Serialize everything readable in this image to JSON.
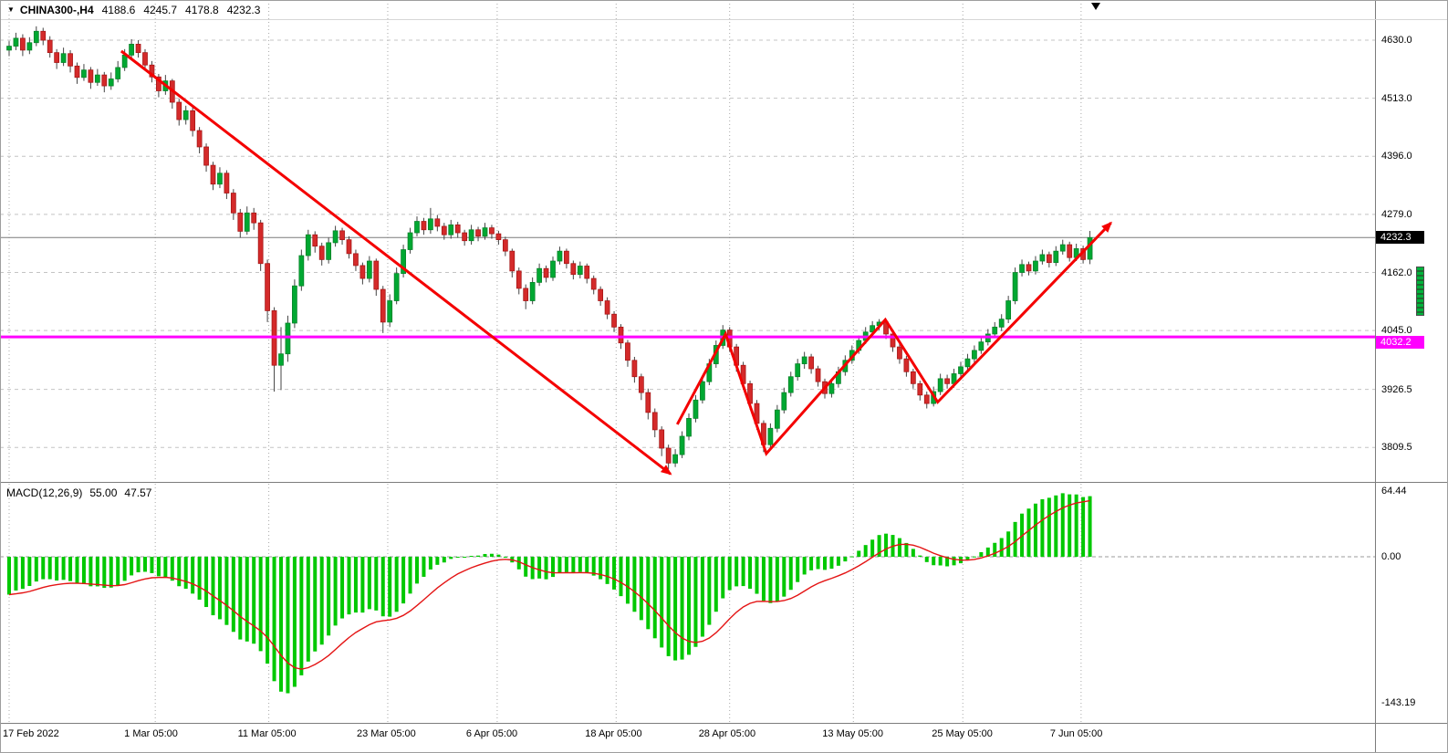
{
  "header": {
    "dropdown_icon": "▼",
    "symbol": "CHINA300-,H4",
    "open": "4188.6",
    "high": "4245.7",
    "low": "4178.8",
    "close": "4232.3"
  },
  "macd_panel": {
    "label": "MACD(12,26,9)",
    "main_value": "55.00",
    "signal_value": "47.57"
  },
  "colors": {
    "background": "#ffffff",
    "grid_h": "#c4c4c4",
    "grid_v": "#a8a8a8",
    "candle_up": "#00a832",
    "candle_up_border": "#067f26",
    "candle_down": "#d42a2a",
    "candle_down_border": "#a31414",
    "wick": "#444444",
    "current_price_line": "#7a7a7a",
    "hline": "#ff00ff",
    "arrow": "#f40000",
    "histogram": "#00c800",
    "signal_line": "#e41414",
    "zero_line": "#9b9b9b",
    "tag_current_bg": "#000000",
    "tag_hline_bg": "#ff00ff"
  },
  "chart_data": [
    {
      "type": "candlestick",
      "symbol": "CHINA300-,H4",
      "timeframe": "H4",
      "last_candle_ohlc": {
        "open": 4188.6,
        "high": 4245.7,
        "low": 4178.8,
        "close": 4232.3
      },
      "price_ticks": [
        "4630.0",
        "4513.0",
        "4396.0",
        "4279.0",
        "4162.0",
        "4045.0",
        "3926.5",
        "3809.5"
      ],
      "scale": {
        "top_price": 4711,
        "bottom_price": 3740
      },
      "time_ticks": [
        {
          "label": "17 Feb 2022",
          "index": 0
        },
        {
          "label": "1 Mar 05:00",
          "index": 21.5
        },
        {
          "label": "11 Mar 05:00",
          "index": 38.2
        },
        {
          "label": "23 Mar 05:00",
          "index": 55.7
        },
        {
          "label": "6 Apr 05:00",
          "index": 71.8
        },
        {
          "label": "18 Apr 05:00",
          "index": 89.3
        },
        {
          "label": "28 Apr 05:00",
          "index": 106
        },
        {
          "label": "13 May 05:00",
          "index": 124.2
        },
        {
          "label": "25 May 05:00",
          "index": 140.3
        },
        {
          "label": "7 Jun 05:00",
          "index": 157.7
        }
      ],
      "current_price": {
        "value": 4232.3,
        "label": "4232.3"
      },
      "horizontal_line": {
        "value": 4032.2,
        "label": "4032.2"
      },
      "trend_arrows": [
        {
          "name": "downtrend-arrow",
          "points": [
            [
              16.5,
              4608
            ],
            [
              97.3,
              3756
            ]
          ]
        },
        {
          "name": "zigzag-recovery-arrow",
          "points": [
            [
              98.3,
              3856
            ],
            [
              105.4,
              4038
            ],
            [
              111.4,
              3797
            ],
            [
              128.9,
              4067
            ],
            [
              136.6,
              3901
            ],
            [
              162.1,
              4262
            ]
          ]
        }
      ],
      "candles": [
        [
          4610,
          4628,
          4598,
          4618
        ],
        [
          4618,
          4645,
          4610,
          4634
        ],
        [
          4634,
          4642,
          4598,
          4610
        ],
        [
          4610,
          4636,
          4602,
          4625
        ],
        [
          4625,
          4658,
          4618,
          4648
        ],
        [
          4648,
          4655,
          4620,
          4630
        ],
        [
          4630,
          4638,
          4595,
          4605
        ],
        [
          4605,
          4612,
          4572,
          4585
        ],
        [
          4585,
          4615,
          4578,
          4603
        ],
        [
          4603,
          4610,
          4565,
          4578
        ],
        [
          4578,
          4585,
          4542,
          4555
        ],
        [
          4555,
          4582,
          4548,
          4570
        ],
        [
          4570,
          4576,
          4532,
          4545
        ],
        [
          4545,
          4572,
          4538,
          4560
        ],
        [
          4560,
          4566,
          4525,
          4538
        ],
        [
          4538,
          4565,
          4530,
          4552
        ],
        [
          4552,
          4588,
          4545,
          4575
        ],
        [
          4575,
          4612,
          4568,
          4600
        ],
        [
          4600,
          4632,
          4592,
          4622
        ],
        [
          4622,
          4630,
          4595,
          4605
        ],
        [
          4605,
          4612,
          4570,
          4580
        ],
        [
          4580,
          4588,
          4545,
          4556
        ],
        [
          4556,
          4562,
          4515,
          4528
        ],
        [
          4528,
          4560,
          4520,
          4548
        ],
        [
          4548,
          4552,
          4492,
          4505
        ],
        [
          4505,
          4512,
          4458,
          4470
        ],
        [
          4470,
          4498,
          4460,
          4488
        ],
        [
          4488,
          4495,
          4436,
          4448
        ],
        [
          4448,
          4455,
          4402,
          4415
        ],
        [
          4415,
          4422,
          4365,
          4378
        ],
        [
          4378,
          4385,
          4328,
          4340
        ],
        [
          4340,
          4374,
          4332,
          4362
        ],
        [
          4362,
          4368,
          4310,
          4322
        ],
        [
          4322,
          4330,
          4268,
          4282
        ],
        [
          4282,
          4290,
          4232,
          4245
        ],
        [
          4245,
          4295,
          4238,
          4282
        ],
        [
          4282,
          4292,
          4248,
          4262
        ],
        [
          4262,
          4268,
          4165,
          4180
        ],
        [
          4180,
          4188,
          4062,
          4085
        ],
        [
          4085,
          4092,
          3922,
          3975
        ],
        [
          3975,
          4052,
          3925,
          3998
        ],
        [
          3998,
          4075,
          3982,
          4060
        ],
        [
          4060,
          4148,
          4050,
          4135
        ],
        [
          4135,
          4208,
          4125,
          4196
        ],
        [
          4196,
          4248,
          4186,
          4238
        ],
        [
          4238,
          4245,
          4202,
          4215
        ],
        [
          4215,
          4222,
          4176,
          4188
        ],
        [
          4188,
          4232,
          4180,
          4222
        ],
        [
          4222,
          4256,
          4214,
          4246
        ],
        [
          4246,
          4252,
          4218,
          4228
        ],
        [
          4228,
          4235,
          4190,
          4200
        ],
        [
          4200,
          4208,
          4165,
          4176
        ],
        [
          4176,
          4182,
          4138,
          4150
        ],
        [
          4150,
          4195,
          4142,
          4185
        ],
        [
          4185,
          4190,
          4115,
          4128
        ],
        [
          4128,
          4135,
          4040,
          4062
        ],
        [
          4062,
          4118,
          4052,
          4105
        ],
        [
          4105,
          4172,
          4098,
          4160
        ],
        [
          4160,
          4218,
          4152,
          4208
        ],
        [
          4208,
          4252,
          4200,
          4242
        ],
        [
          4242,
          4275,
          4235,
          4265
        ],
        [
          4265,
          4272,
          4238,
          4248
        ],
        [
          4248,
          4292,
          4240,
          4270
        ],
        [
          4270,
          4278,
          4245,
          4255
        ],
        [
          4255,
          4262,
          4228,
          4238
        ],
        [
          4238,
          4268,
          4230,
          4258
        ],
        [
          4258,
          4264,
          4232,
          4242
        ],
        [
          4242,
          4248,
          4216,
          4226
        ],
        [
          4226,
          4258,
          4218,
          4248
        ],
        [
          4248,
          4254,
          4225,
          4235
        ],
        [
          4235,
          4262,
          4228,
          4252
        ],
        [
          4252,
          4258,
          4230,
          4240
        ],
        [
          4240,
          4246,
          4218,
          4228
        ],
        [
          4228,
          4234,
          4195,
          4205
        ],
        [
          4205,
          4210,
          4152,
          4165
        ],
        [
          4165,
          4172,
          4118,
          4130
        ],
        [
          4130,
          4138,
          4088,
          4105
        ],
        [
          4105,
          4152,
          4098,
          4142
        ],
        [
          4142,
          4180,
          4135,
          4170
        ],
        [
          4170,
          4176,
          4142,
          4152
        ],
        [
          4152,
          4194,
          4145,
          4185
        ],
        [
          4185,
          4214,
          4178,
          4205
        ],
        [
          4205,
          4210,
          4170,
          4180
        ],
        [
          4180,
          4186,
          4148,
          4158
        ],
        [
          4158,
          4184,
          4150,
          4175
        ],
        [
          4175,
          4180,
          4140,
          4150
        ],
        [
          4150,
          4156,
          4118,
          4128
        ],
        [
          4128,
          4134,
          4095,
          4105
        ],
        [
          4105,
          4112,
          4068,
          4078
        ],
        [
          4078,
          4084,
          4042,
          4052
        ],
        [
          4052,
          4058,
          4008,
          4020
        ],
        [
          4020,
          4026,
          3972,
          3985
        ],
        [
          3985,
          3992,
          3940,
          3952
        ],
        [
          3952,
          3958,
          3905,
          3920
        ],
        [
          3920,
          3928,
          3866,
          3880
        ],
        [
          3880,
          3888,
          3830,
          3845
        ],
        [
          3845,
          3852,
          3792,
          3808
        ],
        [
          3808,
          3815,
          3766,
          3778
        ],
        [
          3778,
          3806,
          3770,
          3795
        ],
        [
          3795,
          3842,
          3788,
          3832
        ],
        [
          3832,
          3878,
          3824,
          3868
        ],
        [
          3868,
          3915,
          3860,
          3905
        ],
        [
          3905,
          3952,
          3898,
          3942
        ],
        [
          3942,
          3988,
          3935,
          3978
        ],
        [
          3978,
          4025,
          3970,
          4015
        ],
        [
          4015,
          4056,
          4008,
          4046
        ],
        [
          4046,
          4052,
          4002,
          4012
        ],
        [
          4012,
          4018,
          3962,
          3975
        ],
        [
          3975,
          3982,
          3926,
          3938
        ],
        [
          3938,
          3944,
          3886,
          3898
        ],
        [
          3898,
          3905,
          3845,
          3858
        ],
        [
          3858,
          3864,
          3800,
          3815
        ],
        [
          3815,
          3858,
          3808,
          3848
        ],
        [
          3848,
          3895,
          3840,
          3885
        ],
        [
          3885,
          3930,
          3878,
          3920
        ],
        [
          3920,
          3962,
          3912,
          3952
        ],
        [
          3952,
          3988,
          3944,
          3978
        ],
        [
          3978,
          4002,
          3968,
          3992
        ],
        [
          3992,
          3998,
          3958,
          3968
        ],
        [
          3968,
          3974,
          3932,
          3942
        ],
        [
          3942,
          3948,
          3908,
          3918
        ],
        [
          3918,
          3948,
          3910,
          3938
        ],
        [
          3938,
          3972,
          3930,
          3962
        ],
        [
          3962,
          3995,
          3954,
          3985
        ],
        [
          3985,
          4015,
          3978,
          4005
        ],
        [
          4005,
          4035,
          3998,
          4025
        ],
        [
          4025,
          4052,
          4018,
          4042
        ],
        [
          4042,
          4064,
          4035,
          4055
        ],
        [
          4055,
          4068,
          4046,
          4062
        ],
        [
          4062,
          4066,
          4028,
          4038
        ],
        [
          4038,
          4044,
          4002,
          4012
        ],
        [
          4012,
          4018,
          3978,
          3988
        ],
        [
          3988,
          3994,
          3952,
          3962
        ],
        [
          3962,
          3968,
          3928,
          3938
        ],
        [
          3938,
          3944,
          3904,
          3915
        ],
        [
          3915,
          3922,
          3888,
          3898
        ],
        [
          3898,
          3932,
          3892,
          3922
        ],
        [
          3922,
          3958,
          3915,
          3948
        ],
        [
          3948,
          3956,
          3928,
          3938
        ],
        [
          3938,
          3968,
          3930,
          3958
        ],
        [
          3958,
          3982,
          3950,
          3972
        ],
        [
          3972,
          3998,
          3964,
          3988
        ],
        [
          3988,
          4015,
          3980,
          4005
        ],
        [
          4005,
          4032,
          3998,
          4022
        ],
        [
          4022,
          4048,
          4015,
          4038
        ],
        [
          4038,
          4062,
          4030,
          4052
        ],
        [
          4052,
          4078,
          4044,
          4068
        ],
        [
          4068,
          4115,
          4060,
          4105
        ],
        [
          4105,
          4172,
          4098,
          4162
        ],
        [
          4162,
          4188,
          4154,
          4178
        ],
        [
          4178,
          4184,
          4156,
          4165
        ],
        [
          4165,
          4195,
          4158,
          4185
        ],
        [
          4185,
          4208,
          4178,
          4198
        ],
        [
          4198,
          4204,
          4172,
          4182
        ],
        [
          4182,
          4215,
          4175,
          4205
        ],
        [
          4205,
          4228,
          4198,
          4218
        ],
        [
          4218,
          4224,
          4184,
          4192
        ],
        [
          4192,
          4220,
          4185,
          4210
        ],
        [
          4210,
          4216,
          4180,
          4188
        ],
        [
          4188.6,
          4245.7,
          4178.8,
          4232.3
        ]
      ]
    },
    {
      "type": "bar",
      "indicator": "MACD(12,26,9)",
      "current_main": 55.0,
      "current_signal": 47.57,
      "y_ticks": [
        "64.44",
        "0.00",
        "-143.19"
      ],
      "derivation": "histogram and red signal line computed as MACD(12,26,9) of candle closes",
      "histogram_color": "#00c800",
      "signal_color": "#e41414"
    }
  ]
}
